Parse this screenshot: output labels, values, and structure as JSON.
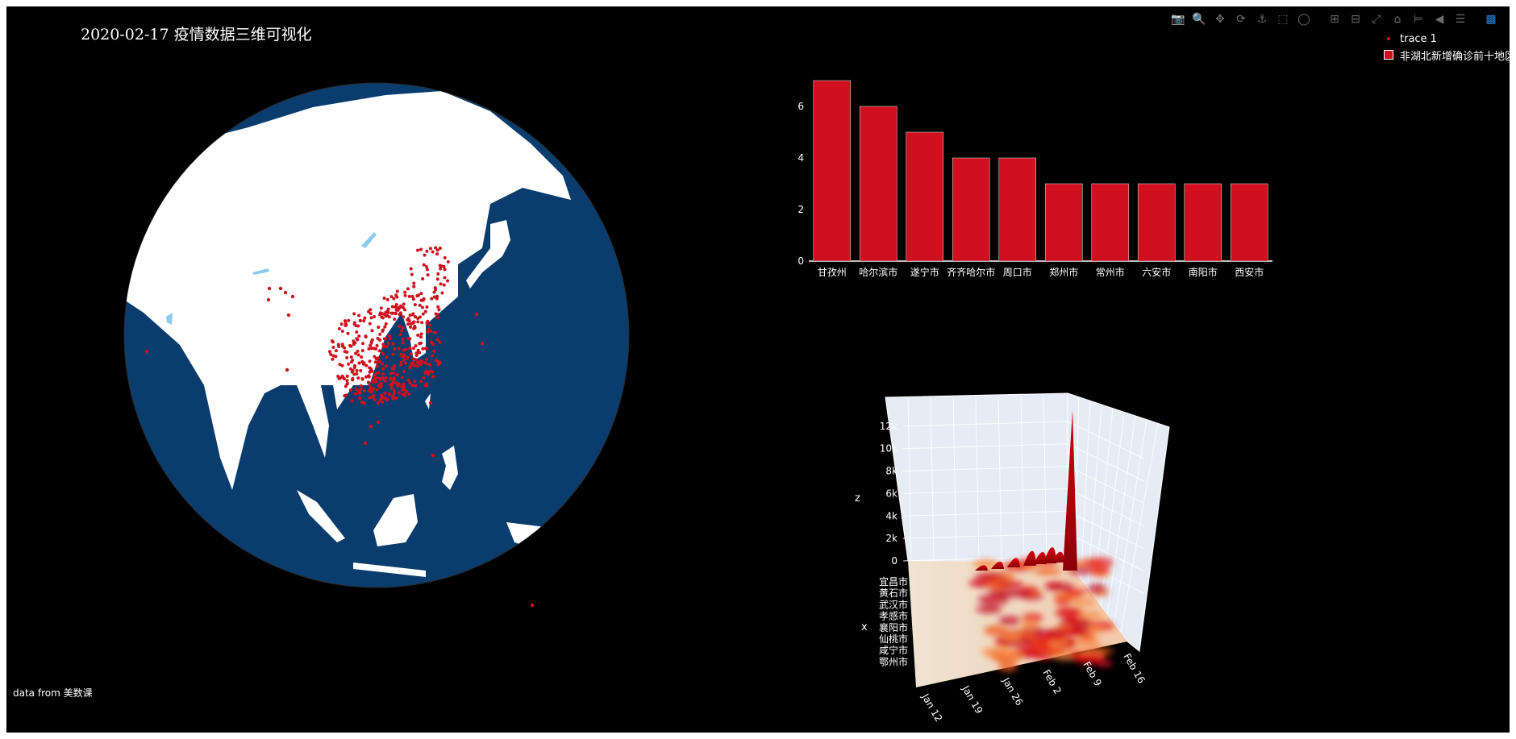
{
  "title": "2020-02-17 疫情数据三维可视化",
  "source_note": "data from 美数课",
  "modebar": {
    "icons": [
      "camera-icon",
      "zoom-icon",
      "pan-icon",
      "orbit-icon",
      "turntable-icon",
      "box-select-icon",
      "lasso-icon",
      "zoom-in-icon",
      "zoom-out-icon",
      "autoscale-icon",
      "home-icon",
      "spike-lines-icon",
      "hover-closest-icon",
      "hover-compare-icon",
      "plotly-logo-icon"
    ]
  },
  "legend": [
    {
      "label": "trace 1",
      "symbol": "dot"
    },
    {
      "label": "非湖北新增确诊前十地区",
      "symbol": "box"
    }
  ],
  "colors": {
    "background": "#000000",
    "ocean": "#0a3d6e",
    "land": "#ffffff",
    "accent": "#d0101e",
    "lakes": "#88ccee",
    "scene_bg": "#e5ecf6"
  },
  "chart_data": [
    {
      "type": "scatter",
      "subtype": "scattergeo-orthographic",
      "series": [
        {
          "name": "trace 1"
        }
      ],
      "projection_center": {
        "lon": 108,
        "lat": 29
      },
      "note_points": "confirmed-case cities across China, Hong Kong, Taiwan, Japan, Korea, SE Asia, India, Australia"
    },
    {
      "type": "bar",
      "categories": [
        "甘孜州",
        "哈尔滨市",
        "遂宁市",
        "齐齐哈尔市",
        "周口市",
        "郑州市",
        "常州市",
        "六安市",
        "南阳市",
        "西安市"
      ],
      "series": [
        {
          "name": "非湖北新增确诊前十地区",
          "values": [
            7,
            6,
            5,
            4,
            4,
            3,
            3,
            3,
            3,
            3
          ]
        }
      ],
      "yticks": [
        "0",
        "2",
        "4",
        "6"
      ],
      "ylim": [
        0,
        7.5
      ],
      "grid": false
    },
    {
      "type": "heatmap",
      "subtype": "surface-3d",
      "axes": {
        "x": "x",
        "z": "z"
      },
      "x_ticks": [
        "宜昌市",
        "黄石市",
        "武汉市",
        "孝感市",
        "襄阳市",
        "仙桃市",
        "咸宁市",
        "鄂州市"
      ],
      "date_ticks": [
        "Jan 12",
        "Jan 19",
        "Jan 26",
        "Feb 2",
        "Feb 9",
        "Feb 16"
      ],
      "z_ticks": [
        "0",
        "2k",
        "4k",
        "6k",
        "8k",
        "10k",
        "12k"
      ],
      "zlim": [
        0,
        13500
      ],
      "peak": {
        "x": "武汉市",
        "date": "Feb 13",
        "z": 13436
      }
    }
  ]
}
